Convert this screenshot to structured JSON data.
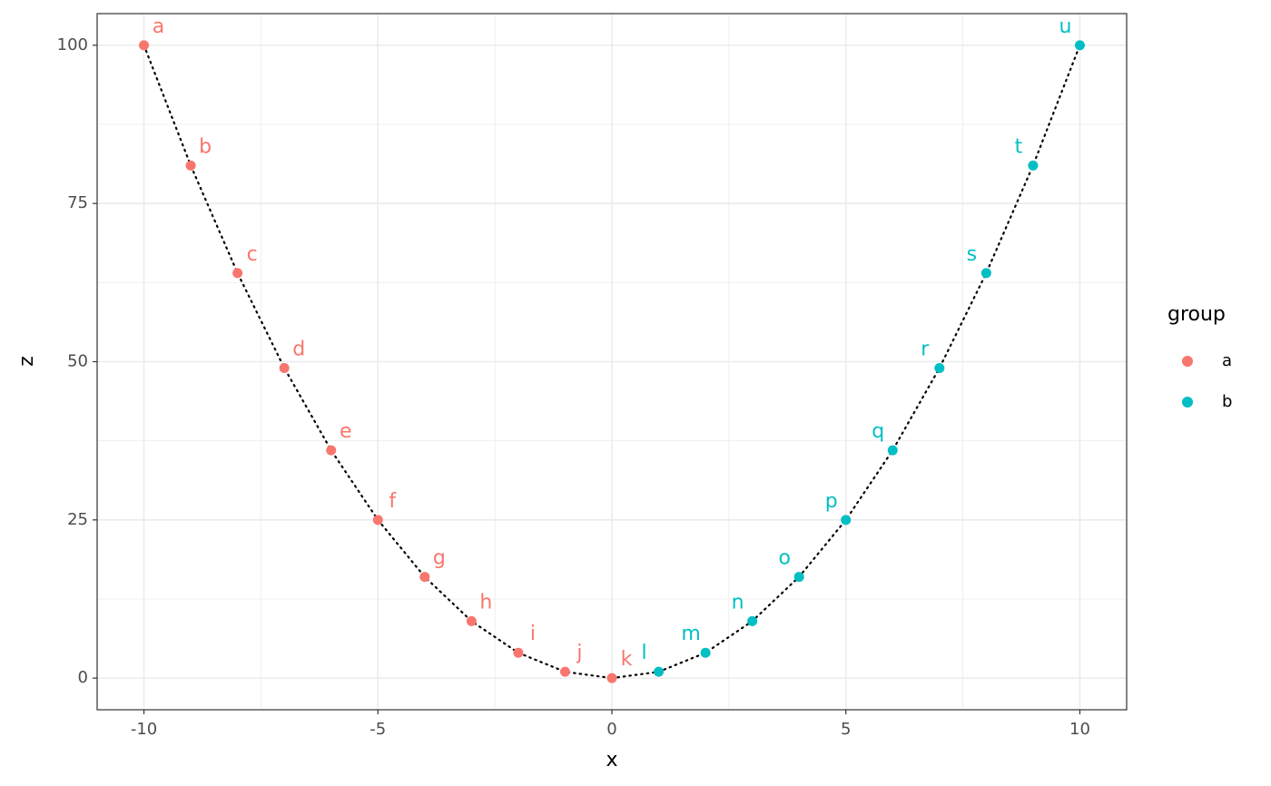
{
  "chart_data": {
    "type": "scatter",
    "x_label": "x",
    "y_label": "z",
    "xlim": [
      -11,
      11
    ],
    "ylim": [
      -5,
      105
    ],
    "xticks": [
      -10,
      -5,
      0,
      5,
      10
    ],
    "yticks": [
      0,
      25,
      50,
      75,
      100
    ],
    "grid": true,
    "line_color": "#000000",
    "legend_title": "group",
    "legend_position": "right",
    "series": [
      {
        "name": "a",
        "color": "#F8766D",
        "x": [
          -10,
          -9,
          -8,
          -7,
          -6,
          -5,
          -4,
          -3,
          -2,
          -1,
          0
        ],
        "values": [
          100,
          81,
          64,
          49,
          36,
          25,
          16,
          9,
          4,
          1,
          0
        ],
        "labels": [
          "a",
          "b",
          "c",
          "d",
          "e",
          "f",
          "g",
          "h",
          "i",
          "j",
          "k"
        ]
      },
      {
        "name": "b",
        "color": "#00BFC4",
        "x": [
          1,
          2,
          3,
          4,
          5,
          6,
          7,
          8,
          9,
          10
        ],
        "values": [
          1,
          4,
          9,
          16,
          25,
          36,
          49,
          64,
          81,
          100
        ],
        "labels": [
          "l",
          "m",
          "n",
          "o",
          "p",
          "q",
          "r",
          "s",
          "t",
          "u"
        ]
      }
    ]
  }
}
